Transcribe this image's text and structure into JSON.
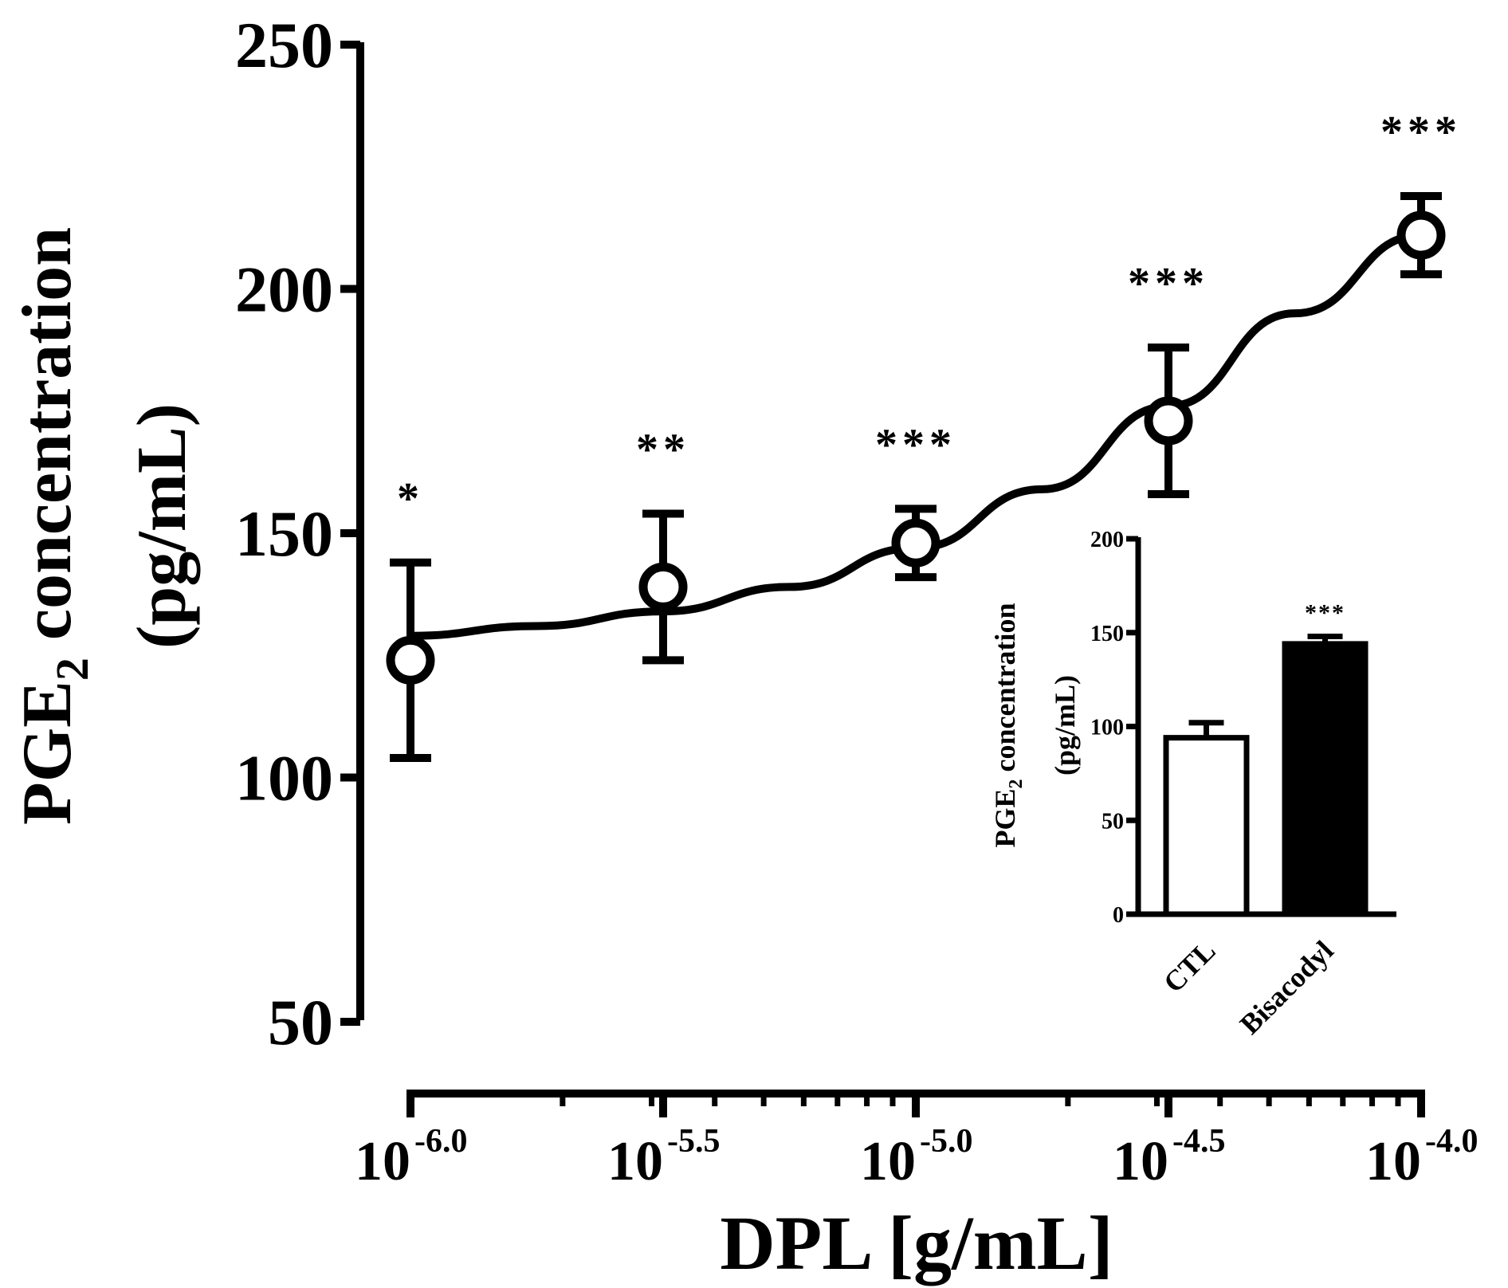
{
  "chart_data": [
    {
      "type": "line",
      "title": "",
      "ylabel": "PGE2 concentration (pg/mL)",
      "ylabel_parts": {
        "line1_prefix": "PGE",
        "line1_sub": "2",
        "line1_suffix": " concentration",
        "line2": "(pg/mL)"
      },
      "xlabel": "DPL [g/mL]",
      "ylim": [
        50,
        250
      ],
      "yticks": [
        50,
        100,
        150,
        200,
        250
      ],
      "x_scale": "log10",
      "xlim_log": [
        -6.0,
        -4.0
      ],
      "x_log": [
        -6.0,
        -5.5,
        -5.0,
        -4.5,
        -4.0
      ],
      "xtick_base": "10",
      "xtick_exponents": [
        "-6.0",
        "-5.5",
        "-5.0",
        "-4.5",
        "-4.0"
      ],
      "series": [
        {
          "name": "DPL",
          "marker": "open-circle",
          "values": [
            124,
            139,
            148,
            173,
            211
          ],
          "error": [
            20,
            15,
            7,
            15,
            8
          ],
          "significance": [
            "*",
            "**",
            "***",
            "***",
            "***"
          ]
        }
      ],
      "fit_curve": {
        "x_log": [
          -6.0,
          -5.75,
          -5.5,
          -5.25,
          -5.0,
          -4.75,
          -4.5,
          -4.25,
          -4.0
        ],
        "values": [
          129,
          131,
          134,
          139,
          147,
          159,
          176,
          195,
          211
        ]
      }
    },
    {
      "type": "bar",
      "title": "",
      "ylabel": "PGE2 concentration (pg/mL)",
      "ylabel_parts": {
        "line1_prefix": "PGE",
        "line1_sub": "2",
        "line1_suffix": " concentration",
        "line2": "(pg/mL)"
      },
      "xlabel": "",
      "ylim": [
        0,
        200
      ],
      "yticks": [
        0,
        50,
        100,
        150,
        200
      ],
      "categories": [
        "CTL",
        "Bisacodyl"
      ],
      "values": [
        94,
        144
      ],
      "error": [
        8,
        4
      ],
      "fills": [
        "#ffffff",
        "#000000"
      ],
      "significance": [
        "",
        "***"
      ]
    }
  ]
}
